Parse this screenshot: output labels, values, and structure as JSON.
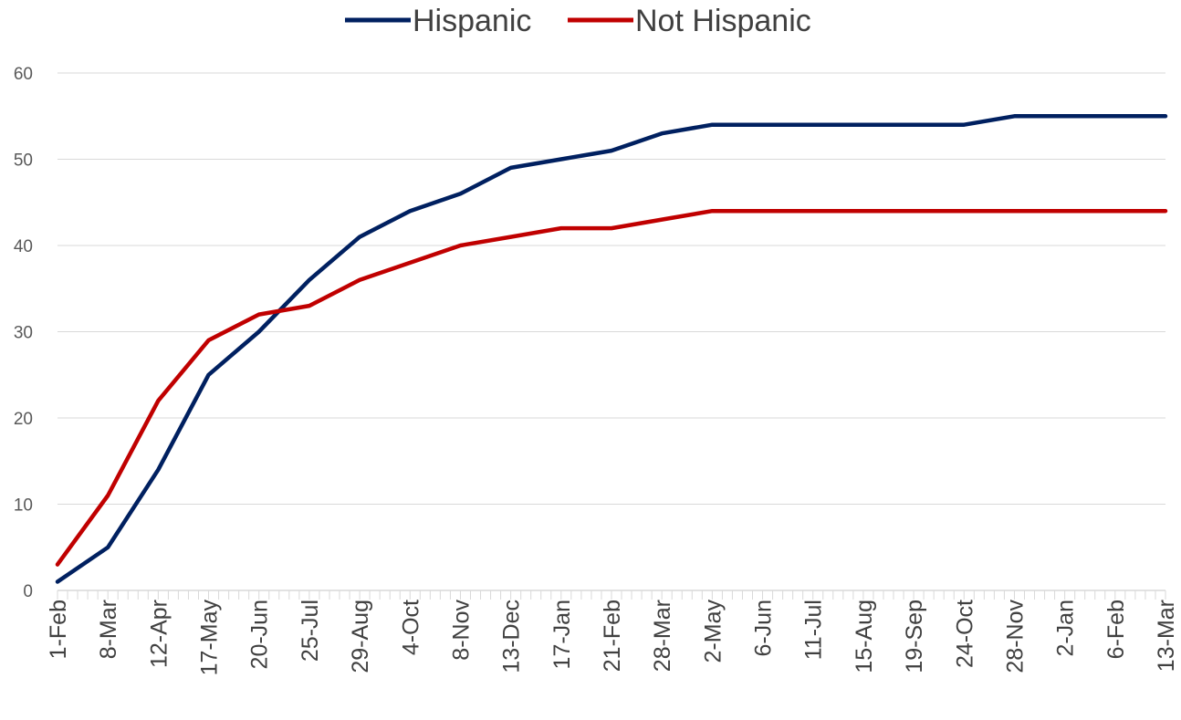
{
  "chart_data": {
    "type": "line",
    "title": "",
    "xlabel": "",
    "ylabel": "",
    "ylim": [
      0,
      60
    ],
    "yticks": [
      0,
      10,
      20,
      30,
      40,
      50,
      60
    ],
    "grid": true,
    "legend_position": "top",
    "x_tick_labels": [
      "1-Feb",
      "8-Mar",
      "12-Apr",
      "17-May",
      "20-Jun",
      "25-Jul",
      "29-Aug",
      "4-Oct",
      "8-Nov",
      "13-Dec",
      "17-Jan",
      "21-Feb",
      "28-Mar",
      "2-May",
      "6-Jun",
      "11-Jul",
      "15-Aug",
      "19-Sep",
      "24-Oct",
      "28-Nov",
      "2-Jan",
      "6-Feb",
      "13-Mar"
    ],
    "series": [
      {
        "name": "Hispanic",
        "color": "#002060",
        "points": [
          [
            "1-Feb",
            1
          ],
          [
            "8-Mar",
            5
          ],
          [
            "12-Apr",
            14
          ],
          [
            "17-May",
            25
          ],
          [
            "20-Jun",
            30
          ],
          [
            "25-Jul",
            36
          ],
          [
            "29-Aug",
            41
          ],
          [
            "4-Oct",
            44
          ],
          [
            "8-Nov",
            46
          ],
          [
            "13-Dec",
            49
          ],
          [
            "17-Jan",
            50
          ],
          [
            "21-Feb",
            51
          ],
          [
            "28-Mar",
            53
          ],
          [
            "2-May",
            54
          ],
          [
            "6-Jun",
            54
          ],
          [
            "11-Jul",
            54
          ],
          [
            "15-Aug",
            54
          ],
          [
            "19-Sep",
            54
          ],
          [
            "24-Oct",
            54
          ],
          [
            "28-Nov",
            55
          ],
          [
            "2-Jan",
            55
          ],
          [
            "6-Feb",
            55
          ],
          [
            "13-Mar",
            55
          ]
        ]
      },
      {
        "name": "Not Hispanic",
        "color": "#C00000",
        "points": [
          [
            "1-Feb",
            3
          ],
          [
            "8-Mar",
            11
          ],
          [
            "12-Apr",
            22
          ],
          [
            "17-May",
            29
          ],
          [
            "20-Jun",
            32
          ],
          [
            "25-Jul",
            33
          ],
          [
            "29-Aug",
            36
          ],
          [
            "4-Oct",
            38
          ],
          [
            "8-Nov",
            40
          ],
          [
            "13-Dec",
            41
          ],
          [
            "17-Jan",
            42
          ],
          [
            "21-Feb",
            42
          ],
          [
            "28-Mar",
            43
          ],
          [
            "2-May",
            44
          ],
          [
            "6-Jun",
            44
          ],
          [
            "11-Jul",
            44
          ],
          [
            "15-Aug",
            44
          ],
          [
            "19-Sep",
            44
          ],
          [
            "24-Oct",
            44
          ],
          [
            "28-Nov",
            44
          ],
          [
            "2-Jan",
            44
          ],
          [
            "6-Feb",
            44
          ],
          [
            "13-Mar",
            44
          ]
        ]
      }
    ]
  }
}
